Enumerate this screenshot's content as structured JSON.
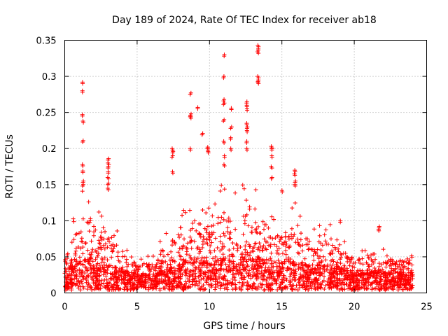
{
  "chart_data": {
    "type": "scatter",
    "title": "Day 189 of 2024, Rate Of TEC Index for receiver ab18",
    "xlabel": "GPS time / hours",
    "ylabel": "ROTI / TECUs",
    "xlim": [
      0,
      25
    ],
    "ylim": [
      0,
      0.35
    ],
    "xticks": [
      0,
      5,
      10,
      15,
      20,
      25
    ],
    "yticks": [
      0,
      0.05,
      0.1,
      0.15,
      0.2,
      0.25,
      0.3,
      0.35
    ],
    "grid": true,
    "marker": "+",
    "color": "#ff0000",
    "series": [
      {
        "name": "ROTI",
        "envelope": [
          {
            "x": 0.0,
            "base": 0.03,
            "peak": 0.06
          },
          {
            "x": 0.5,
            "base": 0.035,
            "peak": 0.09
          },
          {
            "x": 1.0,
            "base": 0.04,
            "peak": 0.13
          },
          {
            "x": 1.3,
            "base": 0.045,
            "peak": 0.15
          },
          {
            "x": 1.7,
            "base": 0.045,
            "peak": 0.13
          },
          {
            "x": 2.0,
            "base": 0.04,
            "peak": 0.11
          },
          {
            "x": 3.0,
            "base": 0.035,
            "peak": 0.1
          },
          {
            "x": 4.0,
            "base": 0.03,
            "peak": 0.07
          },
          {
            "x": 5.0,
            "base": 0.02,
            "peak": 0.045
          },
          {
            "x": 6.0,
            "base": 0.022,
            "peak": 0.05
          },
          {
            "x": 7.0,
            "base": 0.03,
            "peak": 0.08
          },
          {
            "x": 8.0,
            "base": 0.04,
            "peak": 0.12
          },
          {
            "x": 9.0,
            "base": 0.045,
            "peak": 0.14
          },
          {
            "x": 10.0,
            "base": 0.04,
            "peak": 0.11
          },
          {
            "x": 11.0,
            "base": 0.045,
            "peak": 0.15
          },
          {
            "x": 12.0,
            "base": 0.045,
            "peak": 0.13
          },
          {
            "x": 12.6,
            "base": 0.05,
            "peak": 0.16
          },
          {
            "x": 13.5,
            "base": 0.045,
            "peak": 0.14
          },
          {
            "x": 14.5,
            "base": 0.04,
            "peak": 0.1
          },
          {
            "x": 15.8,
            "base": 0.04,
            "peak": 0.12
          },
          {
            "x": 17.0,
            "base": 0.035,
            "peak": 0.09
          },
          {
            "x": 18.5,
            "base": 0.035,
            "peak": 0.09
          },
          {
            "x": 20.0,
            "base": 0.025,
            "peak": 0.05
          },
          {
            "x": 21.5,
            "base": 0.03,
            "peak": 0.07
          },
          {
            "x": 23.0,
            "base": 0.025,
            "peak": 0.05
          },
          {
            "x": 24.0,
            "base": 0.025,
            "peak": 0.05
          }
        ],
        "clusters": [
          {
            "x": 1.25,
            "y": [
              0.292,
              0.28,
              0.247,
              0.238,
              0.211,
              0.178,
              0.169,
              0.155,
              0.15
            ]
          },
          {
            "x": 3.0,
            "y": [
              0.186,
              0.18,
              0.175,
              0.168,
              0.16,
              0.152,
              0.145
            ]
          },
          {
            "x": 7.45,
            "y": [
              0.2,
              0.196,
              0.19,
              0.168
            ]
          },
          {
            "x": 8.7,
            "y": [
              0.277,
              0.248,
              0.246,
              0.244,
              0.2
            ]
          },
          {
            "x": 9.2,
            "y": [
              0.257
            ]
          },
          {
            "x": 9.5,
            "y": [
              0.221
            ]
          },
          {
            "x": 9.9,
            "y": [
              0.202,
              0.2,
              0.196
            ]
          },
          {
            "x": 11.0,
            "y": [
              0.33,
              0.3,
              0.268,
              0.263,
              0.24,
              0.21,
              0.19,
              0.178
            ]
          },
          {
            "x": 11.5,
            "y": [
              0.256,
              0.23,
              0.215,
              0.2
            ]
          },
          {
            "x": 12.6,
            "y": [
              0.265,
              0.26,
              0.255,
              0.235,
              0.23,
              0.225,
              0.21,
              0.2
            ]
          },
          {
            "x": 13.35,
            "y": [
              0.343,
              0.338,
              0.334,
              0.3,
              0.295,
              0.292
            ]
          },
          {
            "x": 14.3,
            "y": [
              0.203,
              0.2,
              0.19,
              0.175,
              0.16
            ]
          },
          {
            "x": 15.0,
            "y": [
              0.142
            ]
          },
          {
            "x": 15.9,
            "y": [
              0.17,
              0.165,
              0.155,
              0.15
            ]
          },
          {
            "x": 19.0,
            "y": [
              0.1
            ]
          },
          {
            "x": 21.7,
            "y": [
              0.092,
              0.088
            ]
          }
        ]
      }
    ]
  }
}
